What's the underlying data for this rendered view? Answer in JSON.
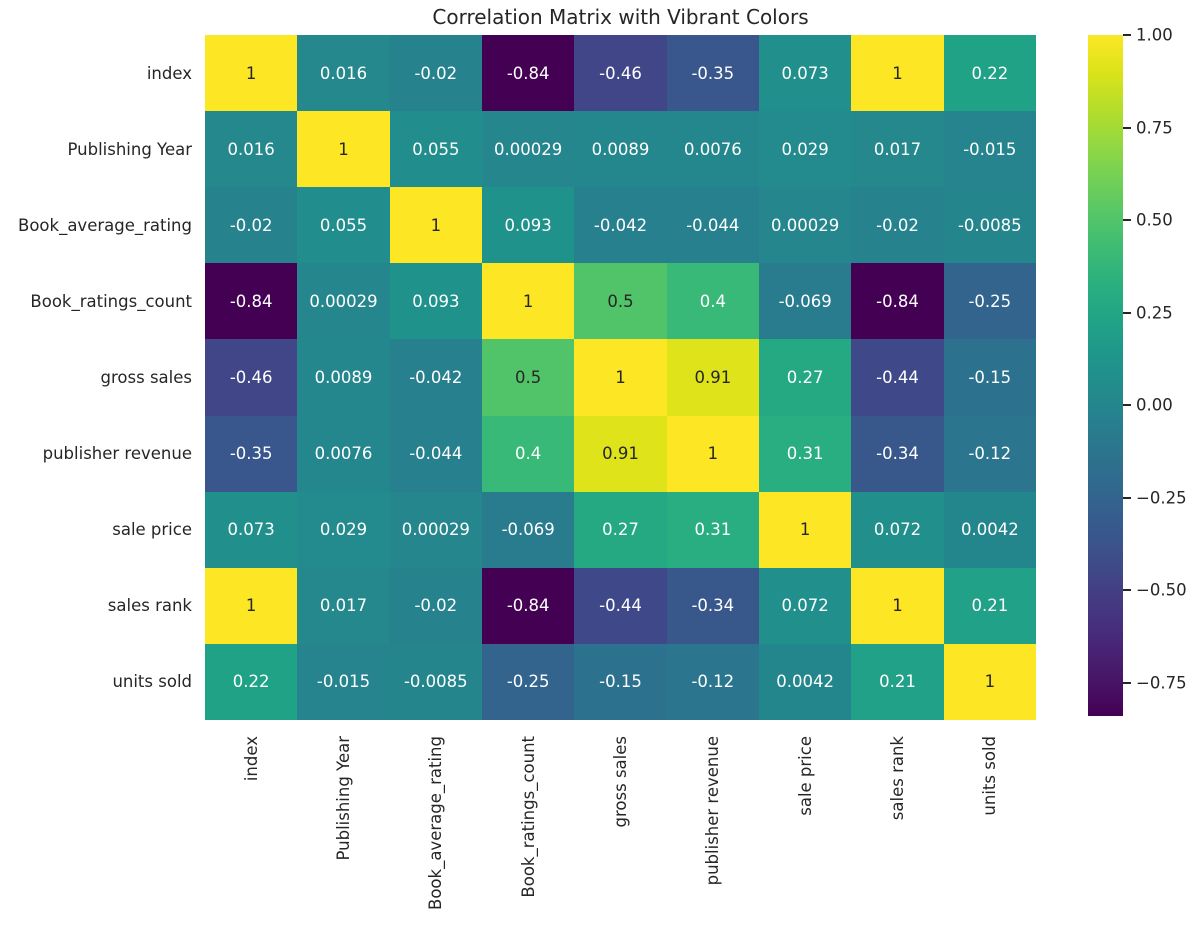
{
  "figure": {
    "background": "#ffffff",
    "text_color": "#262626",
    "annot_dark_color": "#262626",
    "annot_light_color": "#ffffff"
  },
  "chart_data": {
    "type": "heatmap",
    "title": "Correlation Matrix with Vibrant Colors",
    "colormap": "viridis",
    "vmin": -0.84,
    "vmax": 1.0,
    "annotations": true,
    "grid": false,
    "legend_position": "right-colorbar",
    "categories": [
      "index",
      "Publishing Year",
      "Book_average_rating",
      "Book_ratings_count",
      "gross sales",
      "publisher revenue",
      "sale price",
      "sales rank",
      "units sold"
    ],
    "matrix": [
      [
        1,
        0.016,
        -0.02,
        -0.84,
        -0.46,
        -0.35,
        0.073,
        1,
        0.22
      ],
      [
        0.016,
        1,
        0.055,
        0.00029,
        0.0089,
        0.0076,
        0.029,
        0.017,
        -0.015
      ],
      [
        -0.02,
        0.055,
        1,
        0.093,
        -0.042,
        -0.044,
        0.00029,
        -0.02,
        -0.0085
      ],
      [
        -0.84,
        0.00029,
        0.093,
        1,
        0.5,
        0.4,
        -0.069,
        -0.84,
        -0.25
      ],
      [
        -0.46,
        0.0089,
        -0.042,
        0.5,
        1,
        0.91,
        0.27,
        -0.44,
        -0.15
      ],
      [
        -0.35,
        0.0076,
        -0.044,
        0.4,
        0.91,
        1,
        0.31,
        -0.34,
        -0.12
      ],
      [
        0.073,
        0.029,
        0.00029,
        -0.069,
        0.27,
        0.31,
        1,
        0.072,
        0.0042
      ],
      [
        1,
        0.017,
        -0.02,
        -0.84,
        -0.44,
        -0.34,
        0.072,
        1,
        0.21
      ],
      [
        0.22,
        -0.015,
        -0.0085,
        -0.25,
        -0.15,
        -0.12,
        0.0042,
        0.21,
        1
      ]
    ],
    "colorbar": {
      "ticks": [
        {
          "label": "1.00",
          "value": 1.0
        },
        {
          "label": "0.75",
          "value": 0.75
        },
        {
          "label": "0.50",
          "value": 0.5
        },
        {
          "label": "0.25",
          "value": 0.25
        },
        {
          "label": "0.00",
          "value": 0.0
        },
        {
          "label": "−0.25",
          "value": -0.25
        },
        {
          "label": "−0.50",
          "value": -0.5
        },
        {
          "label": "−0.75",
          "value": -0.75
        }
      ]
    }
  }
}
